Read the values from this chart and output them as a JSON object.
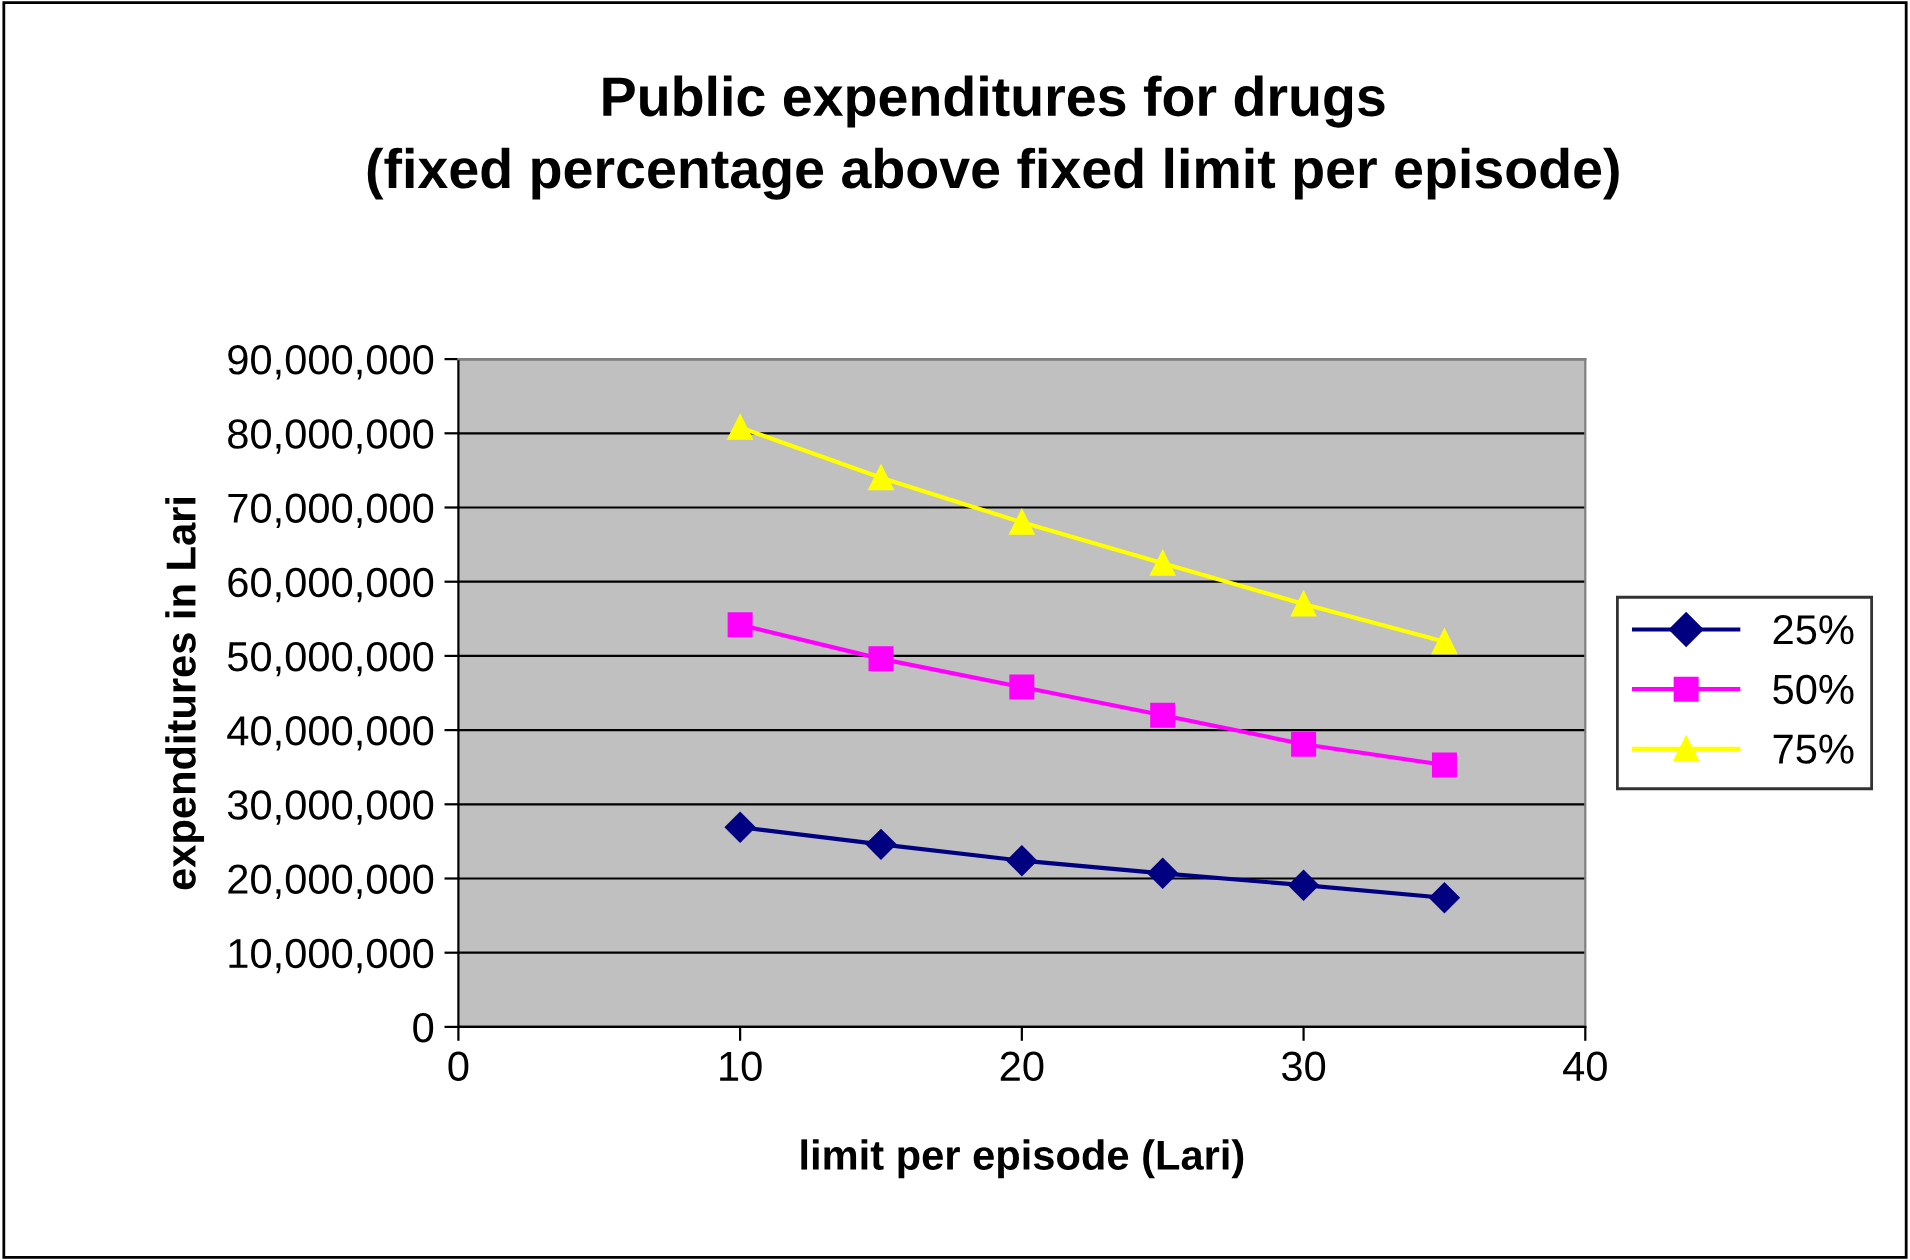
{
  "chart_data": {
    "type": "line",
    "title": "Public expenditures for drugs\n(fixed percentage above fixed limit per episode)",
    "xlabel": "limit per episode (Lari)",
    "ylabel": "expenditures in Lari",
    "x": [
      10,
      15,
      20,
      25,
      30,
      35
    ],
    "series": [
      {
        "name": "25%",
        "color": "#000080",
        "marker": "diamond",
        "values": [
          26900000,
          24600000,
          22400000,
          20700000,
          19100000,
          17400000
        ]
      },
      {
        "name": "50%",
        "color": "#ff00ff",
        "marker": "square",
        "values": [
          54200000,
          49600000,
          45800000,
          42000000,
          38100000,
          35300000
        ]
      },
      {
        "name": "75%",
        "color": "#ffff00",
        "marker": "triangle",
        "values": [
          80800000,
          74000000,
          68000000,
          62500000,
          57000000,
          51900000
        ]
      }
    ],
    "xlim": [
      0,
      40
    ],
    "xticks": [
      0,
      10,
      20,
      30,
      40
    ],
    "ylim": [
      0,
      90000000
    ],
    "yticks": [
      0,
      {
        "value": 10000000,
        "label": "10,000,000"
      },
      {
        "value": 20000000,
        "label": "20,000,000"
      },
      {
        "value": 30000000,
        "label": "30,000,000"
      },
      {
        "value": 40000000,
        "label": "40,000,000"
      },
      {
        "value": 50000000,
        "label": "50,000,000"
      },
      {
        "value": 60000000,
        "label": "60,000,000"
      },
      {
        "value": 70000000,
        "label": "70,000,000"
      },
      {
        "value": 80000000,
        "label": "80,000,000"
      },
      {
        "value": 90000000,
        "label": "90,000,000"
      }
    ],
    "grid": "y",
    "legend": "right",
    "line_style": "solid"
  }
}
